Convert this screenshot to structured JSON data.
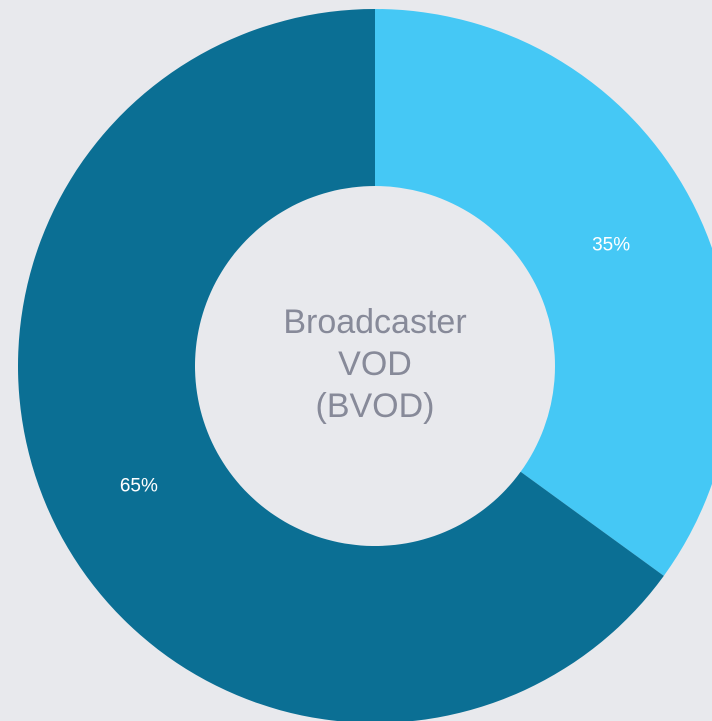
{
  "chart_data": {
    "type": "donut",
    "center_text": [
      "Broadcaster",
      "VOD",
      "(BVOD)"
    ],
    "values": [
      35,
      65
    ],
    "value_labels": [
      "35%",
      "65%"
    ],
    "colors": [
      "#45c8f5",
      "#0b6f94"
    ]
  }
}
